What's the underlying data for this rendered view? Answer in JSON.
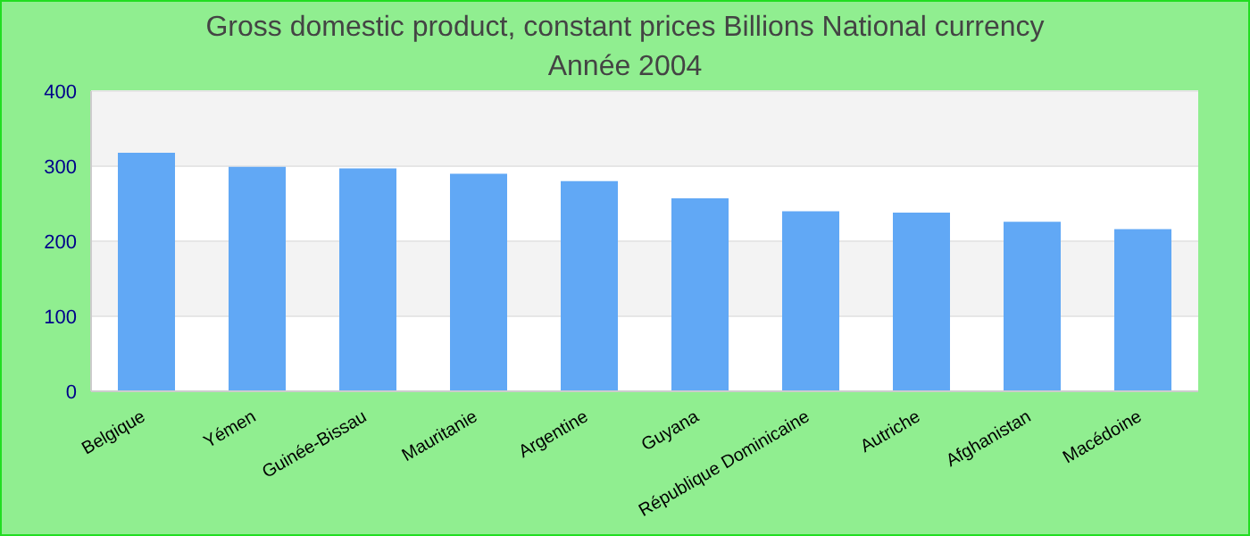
{
  "chart_data": {
    "type": "bar",
    "title": "Gross domestic product, constant prices Billions National currency",
    "subtitle": "Année 2004",
    "categories": [
      "Belgique",
      "Yémen",
      "Guinée-Bissau",
      "Mauritanie",
      "Argentine",
      "Guyana",
      "République Dominicaine",
      "Autriche",
      "Afghanistan",
      "Macédoine"
    ],
    "values": [
      318,
      299,
      297,
      290,
      280,
      257,
      240,
      238,
      226,
      216
    ],
    "color": "#61a8f5",
    "ylim": [
      0,
      400
    ],
    "yticks": [
      0,
      100,
      200,
      300,
      400
    ],
    "grid": "y"
  }
}
